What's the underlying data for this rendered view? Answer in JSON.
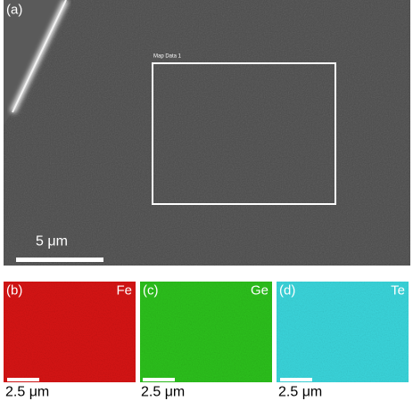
{
  "panels": [
    {
      "label": "(a)",
      "box_label": "Map Data 1",
      "scale_bar": "5 μm"
    },
    {
      "label": "(b)",
      "element": "Fe",
      "scale_bar": "2.5 μm"
    },
    {
      "label": "(c)",
      "element": "Ge",
      "scale_bar": "2.5 μm"
    },
    {
      "label": "(d)",
      "element": "Te",
      "scale_bar": "2.5 μm"
    }
  ]
}
